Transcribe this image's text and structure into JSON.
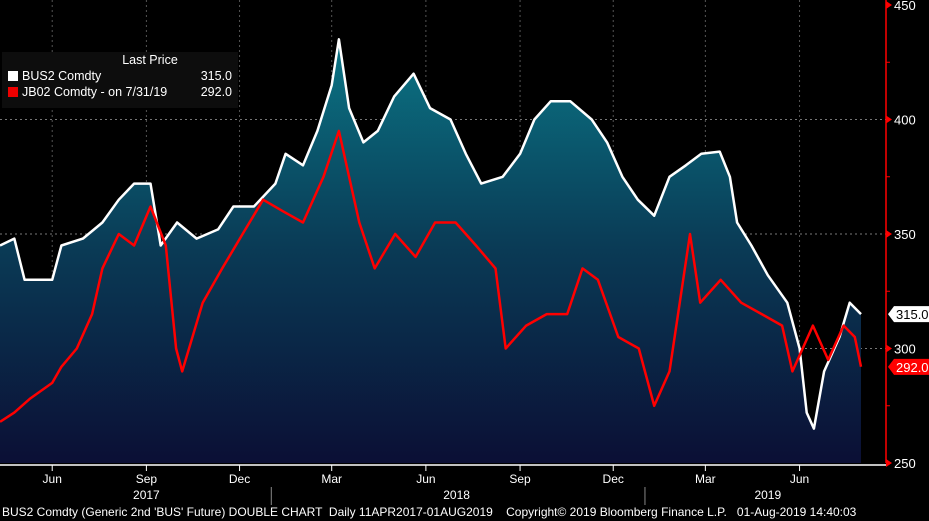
{
  "chart_data": {
    "type": "line",
    "title": "",
    "legend": {
      "header": "Last Price",
      "placement": "top-left"
    },
    "yaxis": {
      "range": [
        250,
        450
      ],
      "ticks": [
        250,
        300,
        350,
        400,
        450
      ],
      "side": "right",
      "color": "#ff0000"
    },
    "xaxis": {
      "range": [
        "2017-04-11",
        "2019-08-01"
      ],
      "month_ticks": [
        {
          "date": "2017-06-01",
          "label": "Jun"
        },
        {
          "date": "2017-09-01",
          "label": "Sep"
        },
        {
          "date": "2017-12-01",
          "label": "Dec"
        },
        {
          "date": "2018-03-01",
          "label": "Mar"
        },
        {
          "date": "2018-06-01",
          "label": "Jun"
        },
        {
          "date": "2018-09-01",
          "label": "Sep"
        },
        {
          "date": "2018-12-01",
          "label": "Dec"
        },
        {
          "date": "2019-03-01",
          "label": "Mar"
        },
        {
          "date": "2019-06-01",
          "label": "Jun"
        }
      ],
      "year_labels": [
        {
          "label": "2017",
          "center": "2017-09-01"
        },
        {
          "label": "2018",
          "center": "2018-07-01"
        },
        {
          "label": "2019",
          "center": "2019-05-01"
        }
      ],
      "year_breaks": [
        "2018-01-01",
        "2019-01-01"
      ]
    },
    "grid": true,
    "series": [
      {
        "name": "BUS2 Comdty",
        "legend_extra": "",
        "last_value": "315.0",
        "color": "#ffffff",
        "fill": true,
        "points": [
          [
            "2017-04-11",
            345
          ],
          [
            "2017-04-25",
            348
          ],
          [
            "2017-05-05",
            330
          ],
          [
            "2017-06-01",
            330
          ],
          [
            "2017-06-10",
            345
          ],
          [
            "2017-07-01",
            348
          ],
          [
            "2017-07-20",
            355
          ],
          [
            "2017-08-05",
            365
          ],
          [
            "2017-08-20",
            372
          ],
          [
            "2017-09-05",
            372
          ],
          [
            "2017-09-15",
            345
          ],
          [
            "2017-10-01",
            355
          ],
          [
            "2017-10-20",
            348
          ],
          [
            "2017-11-10",
            352
          ],
          [
            "2017-11-25",
            362
          ],
          [
            "2017-12-15",
            362
          ],
          [
            "2018-01-05",
            372
          ],
          [
            "2018-01-15",
            385
          ],
          [
            "2018-02-01",
            380
          ],
          [
            "2018-02-15",
            395
          ],
          [
            "2018-03-01",
            415
          ],
          [
            "2018-03-08",
            435
          ],
          [
            "2018-03-18",
            405
          ],
          [
            "2018-04-01",
            390
          ],
          [
            "2018-04-15",
            395
          ],
          [
            "2018-05-01",
            410
          ],
          [
            "2018-05-20",
            420
          ],
          [
            "2018-06-05",
            405
          ],
          [
            "2018-06-25",
            400
          ],
          [
            "2018-07-10",
            385
          ],
          [
            "2018-07-25",
            372
          ],
          [
            "2018-08-15",
            375
          ],
          [
            "2018-09-01",
            385
          ],
          [
            "2018-09-15",
            400
          ],
          [
            "2018-10-01",
            408
          ],
          [
            "2018-10-20",
            408
          ],
          [
            "2018-11-10",
            400
          ],
          [
            "2018-11-25",
            390
          ],
          [
            "2018-12-10",
            375
          ],
          [
            "2018-12-25",
            365
          ],
          [
            "2019-01-10",
            358
          ],
          [
            "2019-01-25",
            375
          ],
          [
            "2019-02-10",
            380
          ],
          [
            "2019-02-25",
            385
          ],
          [
            "2019-03-15",
            386
          ],
          [
            "2019-03-25",
            375
          ],
          [
            "2019-04-01",
            355
          ],
          [
            "2019-04-15",
            345
          ],
          [
            "2019-05-01",
            332
          ],
          [
            "2019-05-20",
            320
          ],
          [
            "2019-06-01",
            300
          ],
          [
            "2019-06-08",
            272
          ],
          [
            "2019-06-15",
            265
          ],
          [
            "2019-06-25",
            290
          ],
          [
            "2019-07-10",
            305
          ],
          [
            "2019-07-20",
            320
          ],
          [
            "2019-07-31",
            315
          ]
        ]
      },
      {
        "name": "JB02 Comdty",
        "legend_extra": "-  on 7/31/19",
        "last_value": "292.0",
        "color": "#ff0000",
        "fill": false,
        "points": [
          [
            "2017-04-11",
            268
          ],
          [
            "2017-04-25",
            272
          ],
          [
            "2017-05-10",
            278
          ],
          [
            "2017-06-01",
            285
          ],
          [
            "2017-06-10",
            292
          ],
          [
            "2017-06-25",
            300
          ],
          [
            "2017-07-10",
            315
          ],
          [
            "2017-07-20",
            335
          ],
          [
            "2017-08-05",
            350
          ],
          [
            "2017-08-20",
            345
          ],
          [
            "2017-09-05",
            362
          ],
          [
            "2017-09-20",
            345
          ],
          [
            "2017-09-30",
            300
          ],
          [
            "2017-10-06",
            290
          ],
          [
            "2017-10-26",
            320
          ],
          [
            "2017-11-14",
            335
          ],
          [
            "2017-12-04",
            350
          ],
          [
            "2017-12-24",
            365
          ],
          [
            "2018-01-12",
            360
          ],
          [
            "2018-02-01",
            355
          ],
          [
            "2018-02-21",
            375
          ],
          [
            "2018-03-08",
            395
          ],
          [
            "2018-03-18",
            375
          ],
          [
            "2018-03-28",
            355
          ],
          [
            "2018-04-12",
            335
          ],
          [
            "2018-05-02",
            350
          ],
          [
            "2018-05-22",
            340
          ],
          [
            "2018-06-10",
            355
          ],
          [
            "2018-06-30",
            355
          ],
          [
            "2018-07-20",
            345
          ],
          [
            "2018-08-08",
            335
          ],
          [
            "2018-08-18",
            300
          ],
          [
            "2018-09-07",
            310
          ],
          [
            "2018-09-27",
            315
          ],
          [
            "2018-10-17",
            315
          ],
          [
            "2018-11-01",
            335
          ],
          [
            "2018-11-16",
            330
          ],
          [
            "2018-12-06",
            305
          ],
          [
            "2018-12-26",
            300
          ],
          [
            "2019-01-10",
            275
          ],
          [
            "2019-01-25",
            290
          ],
          [
            "2019-02-14",
            350
          ],
          [
            "2019-02-24",
            320
          ],
          [
            "2019-03-16",
            330
          ],
          [
            "2019-04-05",
            320
          ],
          [
            "2019-04-25",
            315
          ],
          [
            "2019-05-15",
            310
          ],
          [
            "2019-05-25",
            290
          ],
          [
            "2019-06-14",
            310
          ],
          [
            "2019-06-29",
            295
          ],
          [
            "2019-07-14",
            310
          ],
          [
            "2019-07-25",
            305
          ],
          [
            "2019-07-31",
            292
          ]
        ]
      }
    ]
  },
  "footer": {
    "description": "BUS2 Comdty (Generic 2nd 'BUS' Future) DOUBLE CHART  Daily 11APR2017-01AUG2019",
    "copyright": "Copyright© 2019 Bloomberg Finance L.P.",
    "timestamp": "01-Aug-2019 14:40:03"
  }
}
